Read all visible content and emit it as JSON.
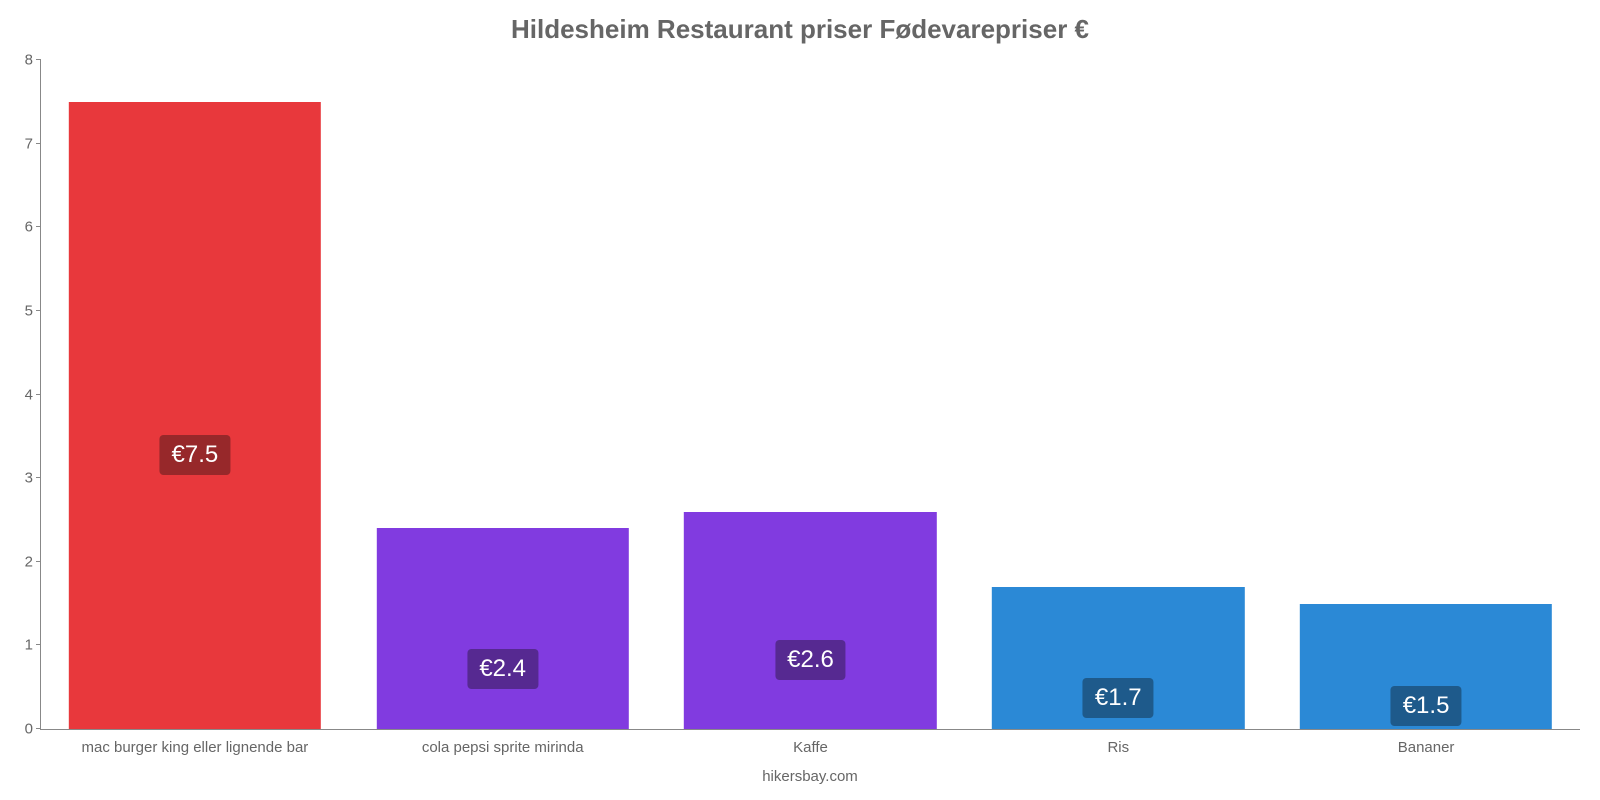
{
  "chart": {
    "type": "bar",
    "title": "Hildesheim Restaurant priser Fødevarepriser €",
    "title_fontsize": 26,
    "title_color": "#666666",
    "source_label": "hikersbay.com",
    "source_color": "#666666",
    "background_color": "#ffffff",
    "axis_color": "#888888",
    "label_color": "#666666",
    "label_fontsize": 15,
    "value_fontsize": 24,
    "ylim_min": 0,
    "ylim_max": 8,
    "ytick_step": 1,
    "bar_width_pct": 82,
    "yticks": [
      {
        "value": 0,
        "label": "0"
      },
      {
        "value": 1,
        "label": "1"
      },
      {
        "value": 2,
        "label": "2"
      },
      {
        "value": 3,
        "label": "3"
      },
      {
        "value": 4,
        "label": "4"
      },
      {
        "value": 5,
        "label": "5"
      },
      {
        "value": 6,
        "label": "6"
      },
      {
        "value": 7,
        "label": "7"
      },
      {
        "value": 8,
        "label": "8"
      }
    ],
    "bars": [
      {
        "category": "mac burger king eller lignende bar",
        "value": 7.5,
        "display": "€7.5",
        "bar_color": "#e8383c",
        "badge_color": "#97282a"
      },
      {
        "category": "cola pepsi sprite mirinda",
        "value": 2.4,
        "display": "€2.4",
        "bar_color": "#813be0",
        "badge_color": "#562991"
      },
      {
        "category": "Kaffe",
        "value": 2.6,
        "display": "€2.6",
        "bar_color": "#813be0",
        "badge_color": "#562991"
      },
      {
        "category": "Ris",
        "value": 1.7,
        "display": "€1.7",
        "bar_color": "#2b89d6",
        "badge_color": "#1e5a8b"
      },
      {
        "category": "Bananer",
        "value": 1.5,
        "display": "€1.5",
        "bar_color": "#2b89d6",
        "badge_color": "#1e5a8b"
      }
    ]
  }
}
